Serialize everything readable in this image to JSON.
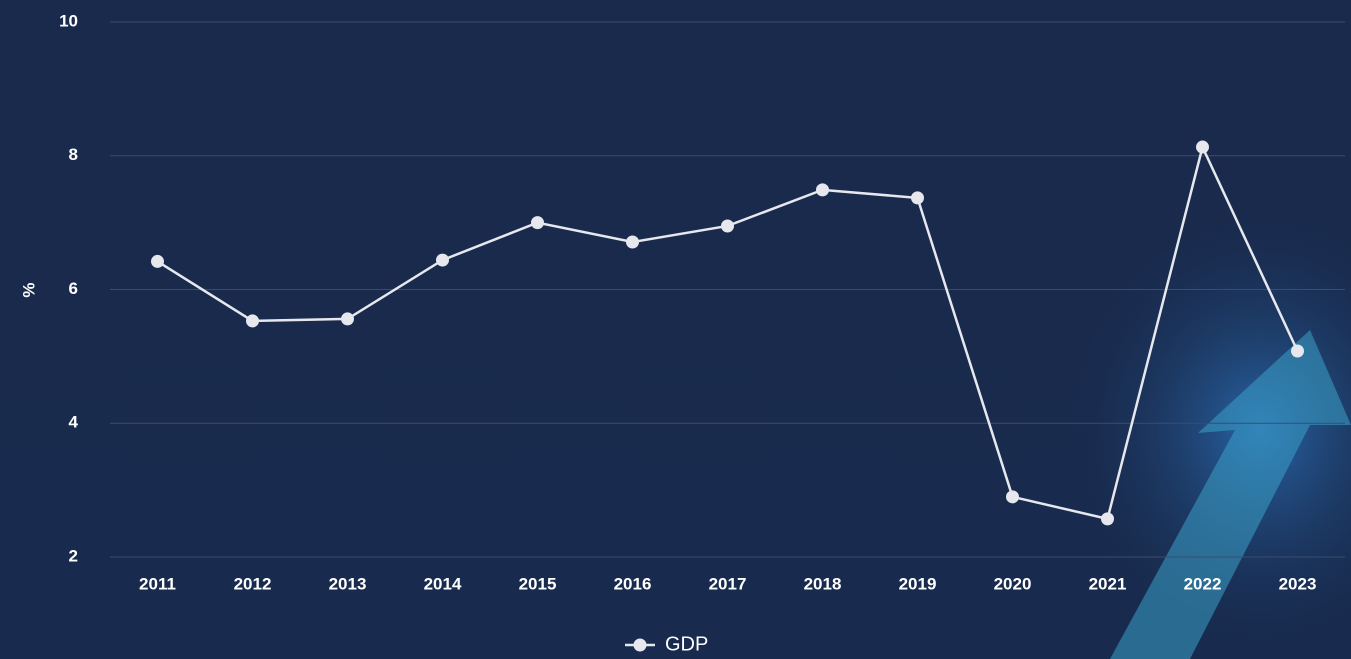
{
  "chart_data": {
    "type": "line",
    "y_label": "%",
    "categories": [
      "2011",
      "2012",
      "2013",
      "2014",
      "2015",
      "2016",
      "2017",
      "2018",
      "2019",
      "2020",
      "2021",
      "2022",
      "2023"
    ],
    "series": [
      {
        "name": "GDP",
        "color": "#e6e8ee",
        "values": [
          6.42,
          5.53,
          5.56,
          6.44,
          7.0,
          6.71,
          6.95,
          7.49,
          7.37,
          2.9,
          2.57,
          8.13,
          5.08
        ]
      }
    ],
    "ylim": [
      2,
      10
    ],
    "yticks": [
      2,
      4,
      6,
      8,
      10
    ],
    "grid": true
  }
}
